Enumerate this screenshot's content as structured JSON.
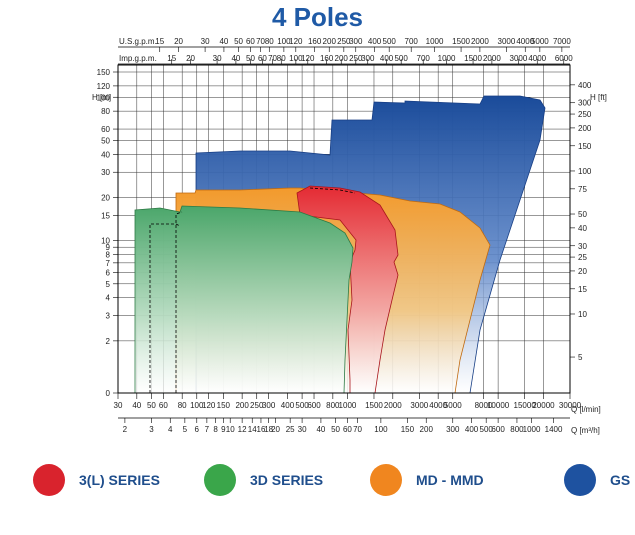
{
  "title": "4 Poles",
  "chart_data": {
    "type": "area",
    "title": "4 Poles",
    "x_axes": {
      "usgpm": {
        "label": "U.S.g.p.m.",
        "ticks": [
          "15",
          "20",
          "30",
          "40",
          "50",
          "60",
          "70",
          "80",
          "100",
          "120",
          "160",
          "200",
          "250",
          "300",
          "400",
          "500",
          "700",
          "1000",
          "1500",
          "2000",
          "3000",
          "4000",
          "5000",
          "7000"
        ]
      },
      "impgpm": {
        "label": "Imp.g.p.m.",
        "ticks": [
          "15",
          "20",
          "30",
          "40",
          "50",
          "60",
          "70",
          "80",
          "100",
          "120",
          "160",
          "200",
          "250",
          "300",
          "400",
          "500",
          "700",
          "1000",
          "1500",
          "2000",
          "3000",
          "4000",
          "6000"
        ]
      },
      "lmin": {
        "label": "Q [l/min]",
        "range": [
          30,
          30000
        ],
        "ticks": [
          "30",
          "40",
          "50",
          "60",
          "80",
          "100",
          "120",
          "150",
          "200",
          "250",
          "300",
          "400",
          "500",
          "600",
          "800",
          "1000",
          "1500",
          "2000",
          "3000",
          "4000",
          "5000",
          "8000",
          "10000",
          "15000",
          "20000",
          "30000"
        ]
      },
      "m3h": {
        "label": "Q [m³/h]",
        "ticks": [
          "2",
          "3",
          "4",
          "5",
          "6",
          "7",
          "8",
          "9",
          "10",
          "12",
          "14",
          "16",
          "18",
          "20",
          "25",
          "30",
          "40",
          "50",
          "60",
          "70",
          "100",
          "150",
          "200",
          "300",
          "400",
          "500",
          "600",
          "800",
          "1000",
          "1400"
        ]
      }
    },
    "y_axes": {
      "m": {
        "label": "H [m]",
        "ticks": [
          "0",
          "2",
          "3",
          "4",
          "5",
          "6",
          "7",
          "8",
          "9",
          "10",
          "15",
          "20",
          "30",
          "40",
          "50",
          "60",
          "80",
          "100",
          "120",
          "150"
        ]
      },
      "ft": {
        "label": "H [ft]",
        "ticks": [
          "5",
          "10",
          "15",
          "20",
          "25",
          "30",
          "40",
          "50",
          "75",
          "100",
          "150",
          "200",
          "250",
          "300",
          "400"
        ]
      }
    },
    "series": [
      {
        "name": "3(L) SERIES",
        "color": "#e5262d",
        "q_range_lmin": [
          1000,
          2000
        ],
        "h_max_m": 24
      },
      {
        "name": "3D SERIES",
        "color": "#3aa650",
        "q_range_lmin": [
          40,
          1100
        ],
        "h_max_m": 18
      },
      {
        "name": "MD - MMD",
        "color": "#f39a2c",
        "q_range_lmin": [
          80,
          8000
        ],
        "h_max_m": 22
      },
      {
        "name": "GS",
        "color": "#1a56a6",
        "q_range_lmin": [
          160,
          20000
        ],
        "h_max_m": 100
      }
    ]
  },
  "legend": [
    {
      "label": "3(L) SERIES",
      "color": "#d9232d"
    },
    {
      "label": "3D SERIES",
      "color": "#3aa64a"
    },
    {
      "label": "MD - MMD",
      "color": "#f0861f"
    },
    {
      "label": "GS",
      "color": "#1e52a0"
    }
  ]
}
